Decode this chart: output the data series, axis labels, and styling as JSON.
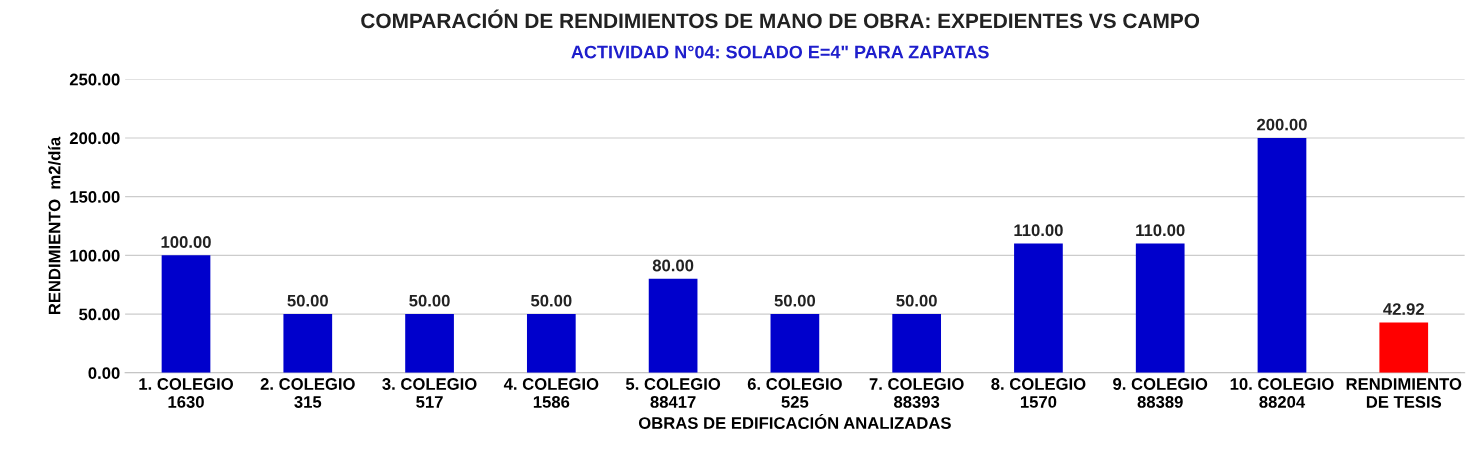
{
  "chart_data": {
    "type": "bar",
    "title": "COMPARACIÓN DE RENDIMIENTOS DE MANO DE OBRA: EXPEDIENTES VS CAMPO",
    "subtitle": "ACTIVIDAD N°04: SOLADO E=4\" PARA ZAPATAS",
    "xlabel": "OBRAS DE EDIFICACIÓN ANALIZADAS",
    "ylabel": "RENDIMIENTO  m2/día",
    "categories": [
      "1. COLEGIO\n1630",
      "2. COLEGIO\n315",
      "3. COLEGIO\n517",
      "4. COLEGIO\n1586",
      "5. COLEGIO\n88417",
      "6. COLEGIO\n525",
      "7. COLEGIO\n88393",
      "8. COLEGIO\n1570",
      "9. COLEGIO\n88389",
      "10. COLEGIO\n88204",
      "RENDIMIENTO\nDE TESIS"
    ],
    "values": [
      100,
      50,
      50,
      50,
      80,
      50,
      50,
      110,
      110,
      200,
      42.92
    ],
    "value_labels": [
      "100.00",
      "50.00",
      "50.00",
      "50.00",
      "80.00",
      "50.00",
      "50.00",
      "110.00",
      "110.00",
      "200.00",
      "42.92"
    ],
    "colors": [
      "#0000cc",
      "#0000cc",
      "#0000cc",
      "#0000cc",
      "#0000cc",
      "#0000cc",
      "#0000cc",
      "#0000cc",
      "#0000cc",
      "#0000cc",
      "#ff0000"
    ],
    "ylim": [
      0,
      250
    ],
    "yticks": [
      {
        "value": 0,
        "label": "0.00"
      },
      {
        "value": 50,
        "label": "50.00"
      },
      {
        "value": 100,
        "label": "100.00"
      },
      {
        "value": 150,
        "label": "150.00"
      },
      {
        "value": 200,
        "label": "200.00"
      },
      {
        "value": 250,
        "label": "250.00"
      }
    ],
    "grid": "y"
  }
}
